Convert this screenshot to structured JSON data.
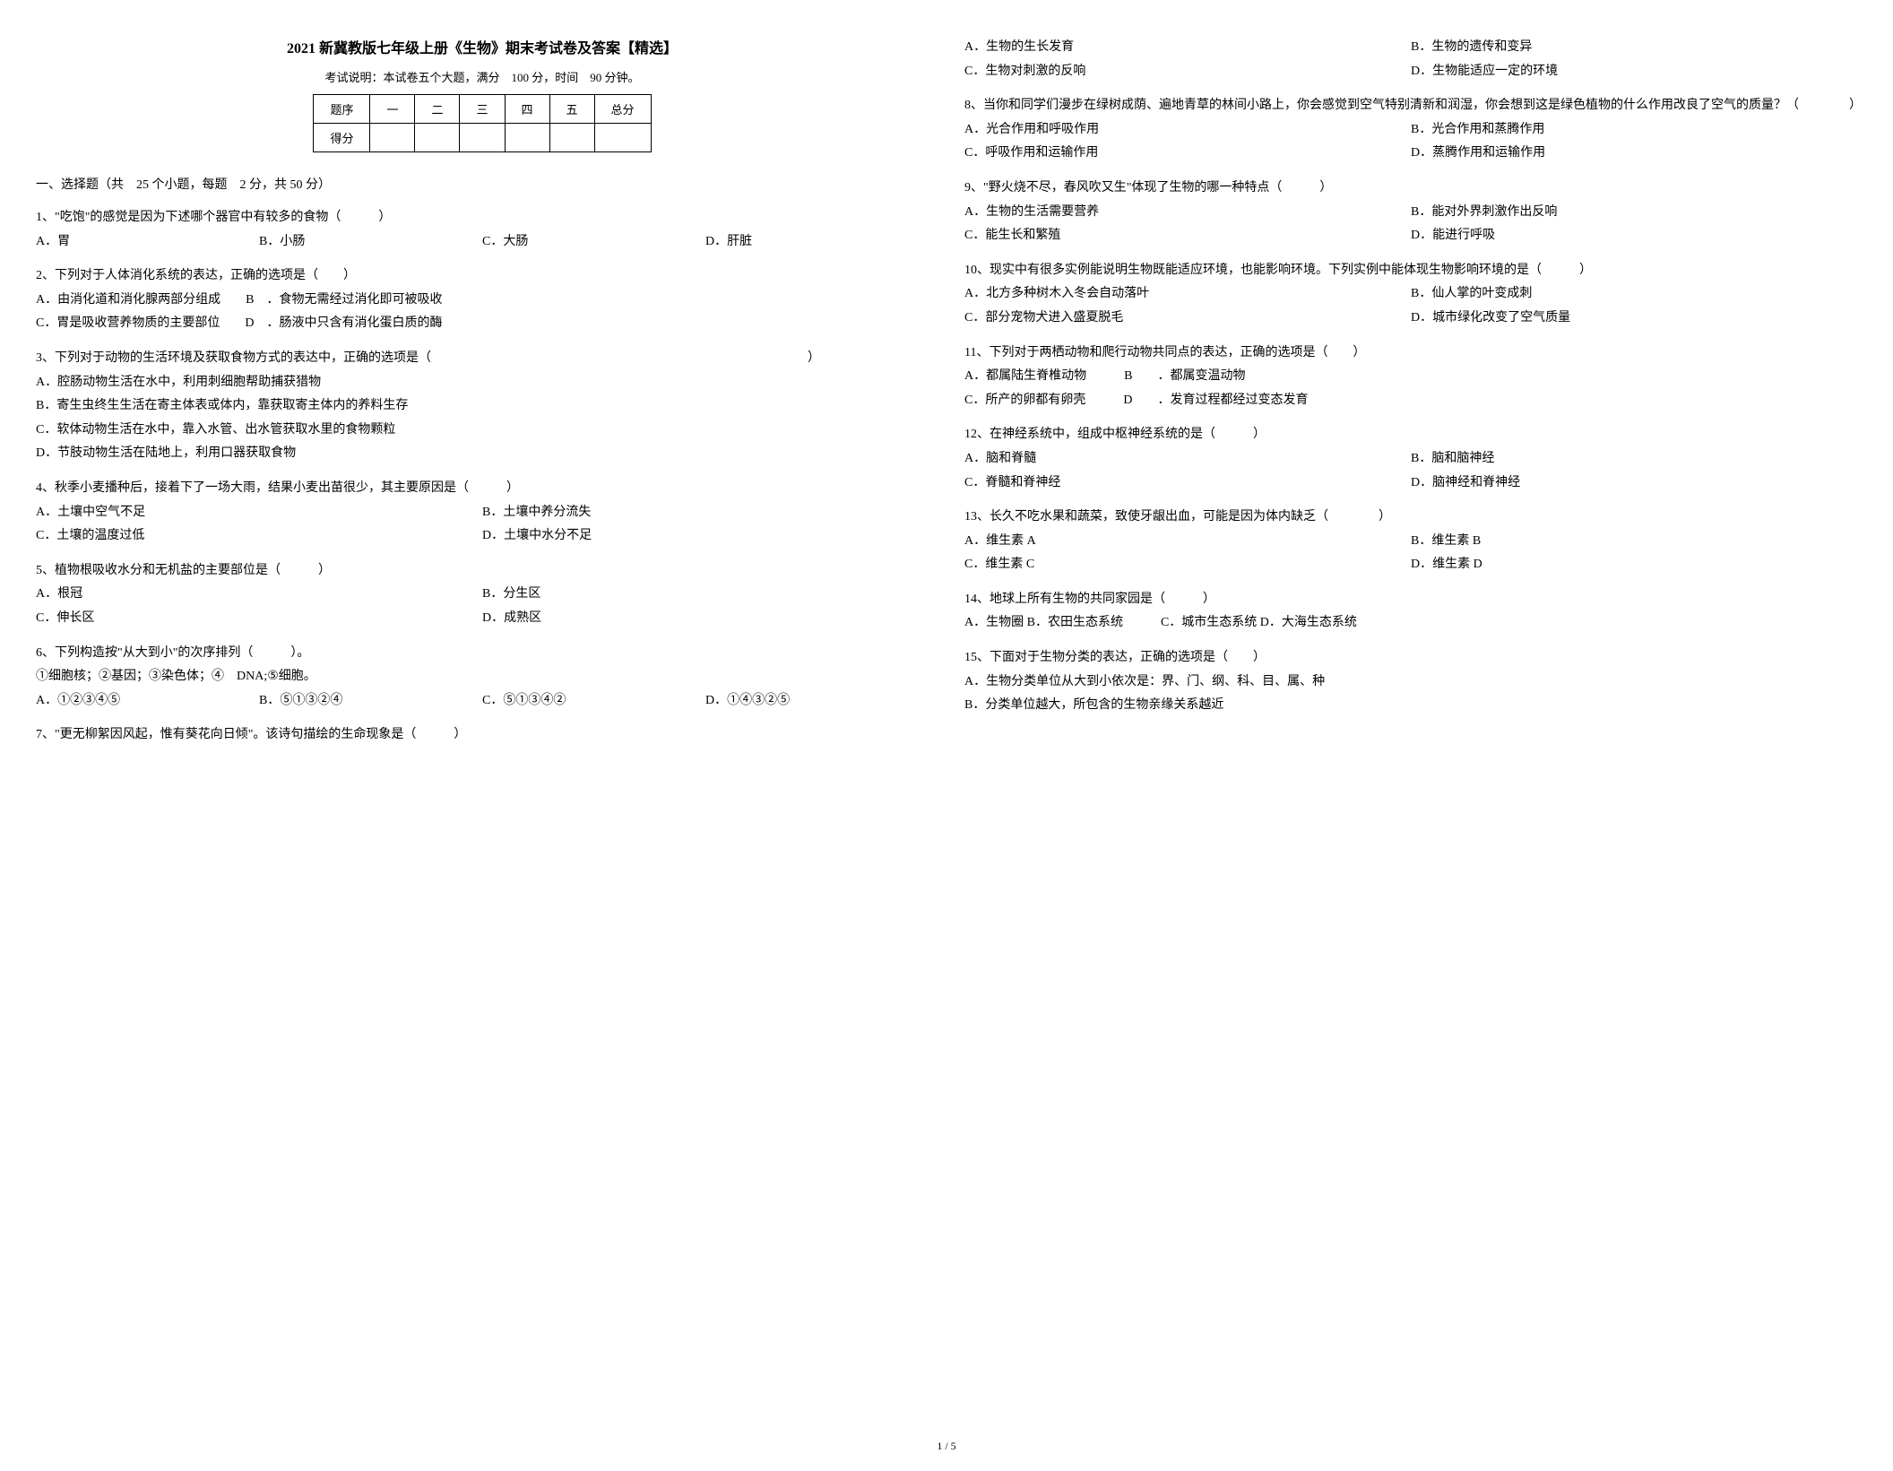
{
  "title": "2021 新冀教版七年级上册《生物》期末考试卷及答案【精选】",
  "exam_info": "考试说明：本试卷五个大题，满分　100 分，时间　90 分钟。",
  "score_table": {
    "headers": [
      "题序",
      "一",
      "二",
      "三",
      "四",
      "五",
      "总分"
    ],
    "row_label": "得分"
  },
  "section_heading": "一、选择题（共　25 个小题，每题　2 分，共 50 分）",
  "questions": [
    {
      "num": "1",
      "text": "、\"吃饱\"的感觉是因为下述哪个器官中有较多的食物（　　　）",
      "options": [
        "A．胃",
        "B．小肠",
        "C．大肠",
        "D．肝脏"
      ],
      "layout": "row"
    },
    {
      "num": "2",
      "text": "、下列对于人体消化系统的表达，正确的选项是（　　）",
      "options": [
        "A．由消化道和消化腺两部分组成　　B　．食物无需经过消化即可被吸收",
        "C．胃是吸收营养物质的主要部位　　D　．肠液中只含有消化蛋白质的酶"
      ],
      "layout": "full"
    },
    {
      "num": "3",
      "text": "、下列对于动物的生活环境及获取食物方式的表达中，正确的选项是（　　　　　　　　　　　　　　　　　　　　　　　　　　　　　　）",
      "options": [
        "A．腔肠动物生活在水中，利用刺细胞帮助捕获猎物",
        "B．寄生虫终生生活在寄主体表或体内，靠获取寄主体内的养料生存",
        "C．软体动物生活在水中，靠入水管、出水管获取水里的食物颗粒",
        "D．节肢动物生活在陆地上，利用口器获取食物"
      ],
      "layout": "full"
    },
    {
      "num": "4",
      "text": "、秋季小麦播种后，接着下了一场大雨，结果小麦出苗很少，其主要原因是（　　　）",
      "options": [
        "A．土壤中空气不足",
        "B．土壤中养分流失",
        "C．土壤的温度过低",
        "D．土壤中水分不足"
      ],
      "layout": "half"
    },
    {
      "num": "5",
      "text": "、植物根吸收水分和无机盐的主要部位是（　　　）",
      "options": [
        "A．根冠",
        "B．分生区",
        "C．伸长区",
        "D．成熟区"
      ],
      "layout": "half"
    },
    {
      "num": "6",
      "text": "、下列构造按\"从大到小\"的次序排列（　　　）。",
      "sub": "①细胞核；②基因；③染色体；④　DNA;⑤细胞。",
      "options": [
        "A．①②③④⑤",
        "B．⑤①③②④",
        "C．⑤①③④②",
        "D．①④③②⑤"
      ],
      "layout": "row"
    },
    {
      "num": "7",
      "text": "、\"更无柳絮因风起，惟有葵花向日倾\"。该诗句描绘的生命现象是（　　　）",
      "options": [
        "A．生物的生长发育",
        "B．生物的遗传和变异",
        "C．生物对刺激的反响",
        "D．生物能适应一定的环境"
      ],
      "layout": "half"
    },
    {
      "num": "8",
      "text": "、当你和同学们漫步在绿树成荫、遍地青草的林间小路上，你会感觉到空气特别清新和润湿，你会想到这是绿色植物的什么作用改良了空气的质量？（　　　　）",
      "options": [
        "A．光合作用和呼吸作用",
        "B．光合作用和蒸腾作用",
        "C．呼吸作用和运输作用",
        "D．蒸腾作用和运输作用"
      ],
      "layout": "half"
    },
    {
      "num": "9",
      "text": "、\"野火烧不尽，春风吹又生\"体现了生物的哪一种特点（　　　）",
      "options": [
        "A．生物的生活需要营养",
        "B．能对外界刺激作出反响",
        "C．能生长和繁殖",
        "D．能进行呼吸"
      ],
      "layout": "half"
    },
    {
      "num": "10",
      "text": "、现实中有很多实例能说明生物既能适应环境，也能影响环境。下列实例中能体现生物影响环境的是（　　　）",
      "options": [
        "A．北方多种树木入冬会自动落叶",
        "B．仙人掌的叶变成刺",
        "C．部分宠物犬进入盛夏脱毛",
        "D．城市绿化改变了空气质量"
      ],
      "layout": "half"
    },
    {
      "num": "11",
      "text": "、下列对于两栖动物和爬行动物共同点的表达，正确的选项是（　　）",
      "options": [
        "A．都属陆生脊椎动物　　　B　　．都属变温动物",
        "C．所产的卵都有卵壳　　　D　　．发育过程都经过变态发育"
      ],
      "layout": "full"
    },
    {
      "num": "12",
      "text": "、在神经系统中，组成中枢神经系统的是（　　　）",
      "options": [
        "A．脑和脊髓",
        "B．脑和脑神经",
        "C．脊髓和脊神经",
        "D．脑神经和脊神经"
      ],
      "layout": "half"
    },
    {
      "num": "13",
      "text": "、长久不吃水果和蔬菜，致使牙龈出血，可能是因为体内缺乏（　　　　）",
      "options": [
        "A．维生素 A",
        "B．维生素 B",
        "C．维生素 C",
        "D．维生素 D"
      ],
      "layout": "half"
    },
    {
      "num": "14",
      "text": "、地球上所有生物的共同家园是（　　　）",
      "options": [
        "A．生物圈 B．农田生态系统　　　C．城市生态系统 D．大海生态系统"
      ],
      "layout": "full"
    },
    {
      "num": "15",
      "text": "、下面对于生物分类的表达，正确的选项是（　　）",
      "options": [
        "A．生物分类单位从大到小依次是：界、门、纲、科、目、属、种",
        "B．分类单位越大，所包含的生物亲缘关系越近"
      ],
      "layout": "full"
    }
  ],
  "page_num": "1 / 5"
}
